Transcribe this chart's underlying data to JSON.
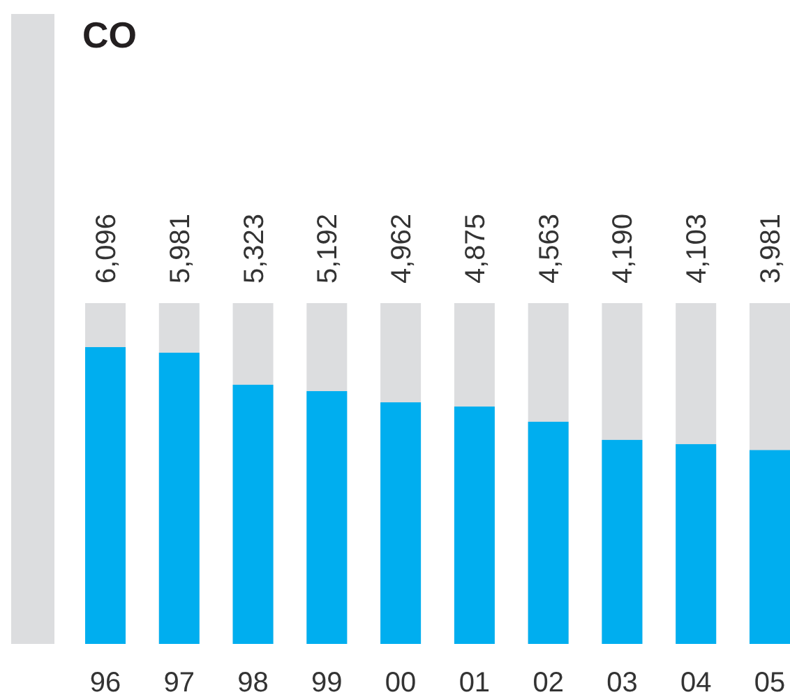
{
  "chart_data": {
    "type": "bar",
    "title": "CO",
    "categories": [
      "96",
      "97",
      "98",
      "99",
      "00",
      "01",
      "02",
      "03",
      "04",
      "05"
    ],
    "values": [
      6096,
      5981,
      5323,
      5192,
      4962,
      4875,
      4563,
      4190,
      4103,
      3981
    ],
    "value_labels": [
      "6,096",
      "5,981",
      "5,323",
      "5,192",
      "4,962",
      "4,875",
      "4,563",
      "4,190",
      "4,103",
      "3,981"
    ],
    "color": "#00aeef",
    "ylim": [
      0,
      7000
    ],
    "tick_labels": "x"
  }
}
